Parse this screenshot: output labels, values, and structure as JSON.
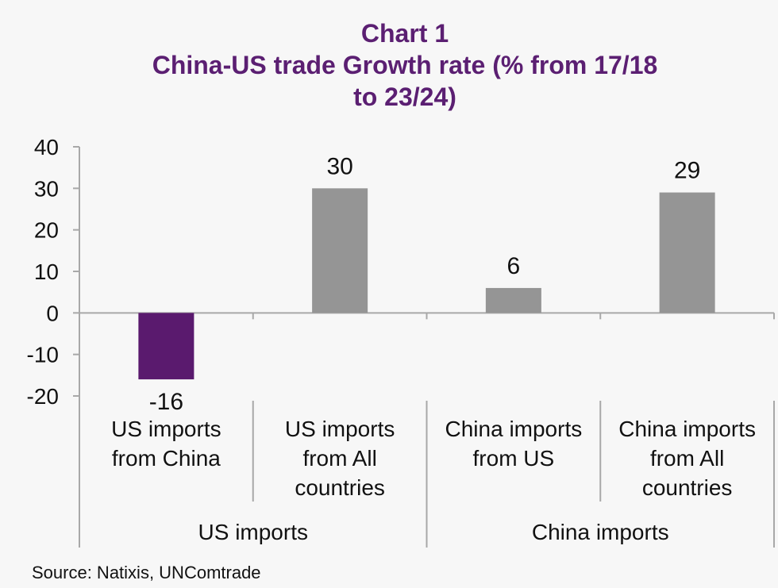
{
  "chart_data": {
    "type": "bar",
    "title": "Chart 1",
    "subtitle_lines": [
      "China-US trade Growth rate (% from 17/18",
      "to 23/24)"
    ],
    "categories": [
      [
        "US imports",
        "from China"
      ],
      [
        "US imports",
        "from All",
        "countries"
      ],
      [
        "China imports",
        "from US"
      ],
      [
        "China imports",
        "from All",
        "countries"
      ]
    ],
    "groups": [
      {
        "label": "US imports",
        "categories": [
          0,
          1
        ]
      },
      {
        "label": "China imports",
        "categories": [
          2,
          3
        ]
      }
    ],
    "series": [
      {
        "values": [
          -16,
          30,
          6,
          29
        ]
      }
    ],
    "data_labels": [
      "-16",
      "30",
      "6",
      "29"
    ],
    "bar_colors": [
      "#5a1a6e",
      "#959595",
      "#959595",
      "#959595"
    ],
    "ylim": [
      -20,
      40
    ],
    "yticks": [
      40,
      30,
      20,
      10,
      0,
      -10,
      -20
    ],
    "grid": false,
    "legend": "none"
  },
  "source": "Source: Natixis, UNComtrade"
}
